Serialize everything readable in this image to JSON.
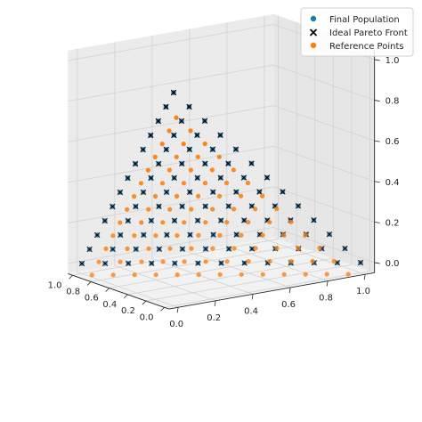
{
  "chart_data": {
    "type": "scatter",
    "projection": "3d",
    "grid": true,
    "legend_position": "top-right",
    "axes": {
      "x": {
        "ticks": [
          "0.0",
          "0.2",
          "0.4",
          "0.6",
          "0.8",
          "1.0"
        ],
        "lim": [
          0,
          1
        ]
      },
      "y": {
        "ticks": [
          "0.0",
          "0.2",
          "0.4",
          "0.6",
          "0.8",
          "1.0"
        ],
        "lim": [
          0,
          1
        ]
      },
      "z": {
        "ticks": [
          "0.0",
          "0.2",
          "0.4",
          "0.6",
          "0.8",
          "1.0"
        ],
        "lim": [
          0,
          1
        ]
      }
    },
    "legend": [
      {
        "label": "Final Population",
        "marker": "circle",
        "color": "#1f77b4"
      },
      {
        "label": "Ideal Pareto Front",
        "marker": "x",
        "color": "#000000"
      },
      {
        "label": "Reference Points",
        "marker": "circle",
        "color": "#ff7f0e"
      }
    ],
    "series": [
      {
        "name": "Final Population",
        "color": "#1f77b4",
        "marker": "circle",
        "points_description": "triangular front x+y+z=1 sampled on a grid (step 1/12)",
        "grid_divisions": 12,
        "plane_sum": 1
      },
      {
        "name": "Ideal Pareto Front",
        "color": "#000000",
        "marker": "x",
        "grid_divisions": 12,
        "plane_sum": 1
      },
      {
        "name": "Reference Points",
        "color": "#ff7f0e",
        "marker": "circle",
        "grid_divisions": 12,
        "plane_sum": 1
      }
    ]
  }
}
